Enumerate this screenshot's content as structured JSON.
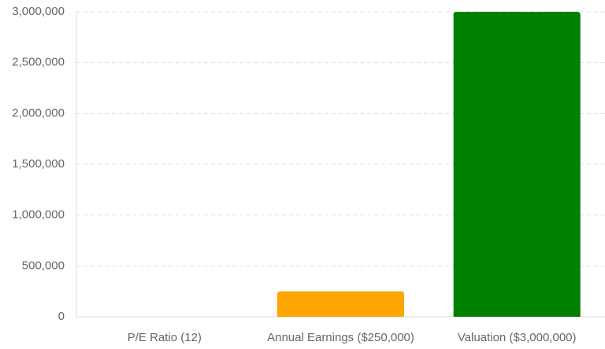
{
  "chart_data": {
    "type": "bar",
    "categories": [
      "P/E Ratio (12)",
      "Annual Earnings ($250,000)",
      "Valuation ($3,000,000)"
    ],
    "values": [
      12,
      250000,
      3000000
    ],
    "colors": [
      "#1f77b4",
      "#ffa500",
      "#008000"
    ],
    "ylim": [
      0,
      3000000
    ],
    "yticks": [
      0,
      {
        "value": 500000,
        "label": "500,000"
      },
      {
        "value": 1000000,
        "label": "1,000,000"
      },
      {
        "value": 1500000,
        "label": "1,500,000"
      },
      {
        "value": 2000000,
        "label": "2,000,000"
      },
      {
        "value": 2500000,
        "label": "2,500,000"
      },
      {
        "value": 3000000,
        "label": "3,000,000"
      }
    ],
    "grid": true
  }
}
